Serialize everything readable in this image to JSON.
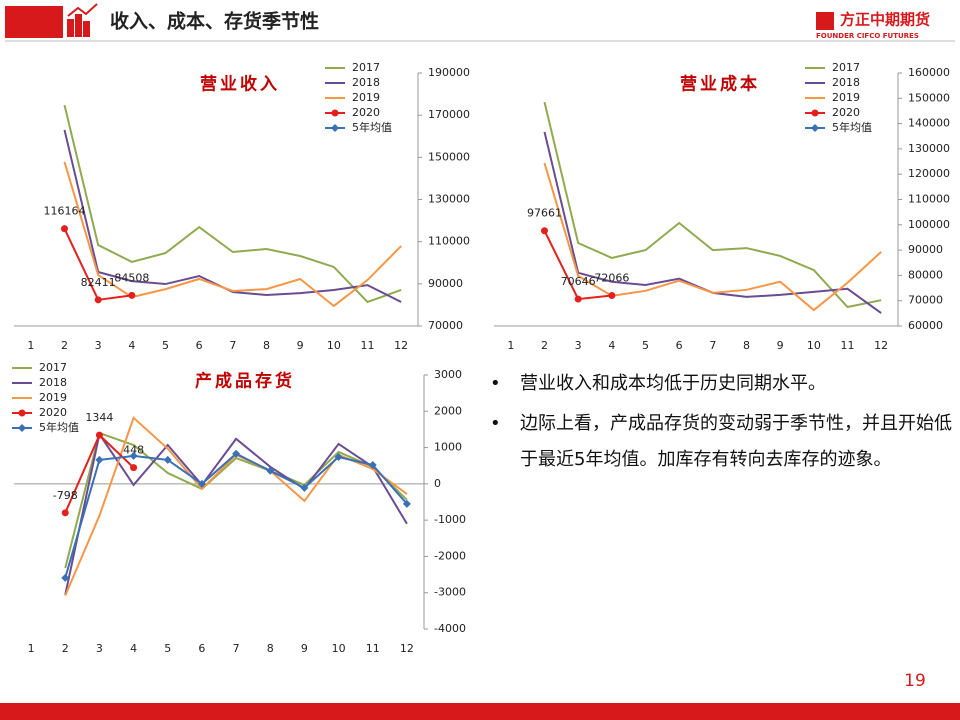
{
  "header": {
    "title": "收入、成本、存货季节性",
    "logo_cn": "方正中期期货",
    "logo_en": "FOUNDER CIFCO FUTURES"
  },
  "chart_data": [
    {
      "type": "line",
      "title": "营业收入",
      "legend": "upper right",
      "categories": [
        "1",
        "2",
        "3",
        "4",
        "5",
        "6",
        "7",
        "8",
        "9",
        "10",
        "11",
        "12"
      ],
      "ylim": [
        70000,
        190000
      ],
      "yticks": [
        70000,
        90000,
        110000,
        130000,
        150000,
        170000,
        190000
      ],
      "series": [
        {
          "name": "2017",
          "color": "#8faa4f",
          "values": [
            null,
            174800,
            108400,
            100400,
            104600,
            116900,
            105100,
            106500,
            103200,
            98000,
            81400,
            87100
          ]
        },
        {
          "name": "2018",
          "color": "#6a4c93",
          "values": [
            null,
            163000,
            95600,
            91300,
            89900,
            93700,
            86100,
            84700,
            85600,
            87100,
            89400,
            81400
          ]
        },
        {
          "name": "2019",
          "color": "#f79646",
          "values": [
            null,
            147800,
            94200,
            83700,
            87500,
            92300,
            86600,
            87500,
            92300,
            79500,
            91800,
            107900
          ]
        },
        {
          "name": "2020",
          "color": "#e3201b",
          "marker": "circle",
          "data_labels": true,
          "values": [
            null,
            116164,
            82411,
            84508,
            null,
            null,
            null,
            null,
            null,
            null,
            null,
            null
          ]
        },
        {
          "name": "5年均值",
          "color": "#3a70b5",
          "marker": "diamond",
          "values": [
            null,
            null,
            null,
            null,
            null,
            null,
            null,
            null,
            null,
            null,
            null,
            null
          ]
        }
      ]
    },
    {
      "type": "line",
      "title": "营业成本",
      "legend": "upper right",
      "categories": [
        "1",
        "2",
        "3",
        "4",
        "5",
        "6",
        "7",
        "8",
        "9",
        "10",
        "11",
        "12"
      ],
      "ylim": [
        60000,
        160000
      ],
      "yticks": [
        60000,
        70000,
        80000,
        90000,
        100000,
        110000,
        120000,
        130000,
        140000,
        150000,
        160000
      ],
      "series": [
        {
          "name": "2017",
          "color": "#8faa4f",
          "values": [
            null,
            148500,
            92800,
            86900,
            90000,
            100700,
            90000,
            90800,
            87700,
            82100,
            67500,
            70200
          ]
        },
        {
          "name": "2018",
          "color": "#6a4c93",
          "values": [
            null,
            136700,
            81000,
            77500,
            76200,
            78700,
            73100,
            71500,
            72300,
            73500,
            74700,
            65100
          ]
        },
        {
          "name": "2019",
          "color": "#f79646",
          "values": [
            null,
            124400,
            79800,
            71900,
            73900,
            77900,
            73100,
            74300,
            77500,
            66300,
            77100,
            89300
          ]
        },
        {
          "name": "2020",
          "color": "#e3201b",
          "marker": "circle",
          "data_labels": true,
          "values": [
            null,
            97661,
            70646,
            72066,
            null,
            null,
            null,
            null,
            null,
            null,
            null,
            null
          ]
        },
        {
          "name": "5年均值",
          "color": "#3a70b5",
          "marker": "diamond",
          "values": [
            null,
            null,
            null,
            null,
            null,
            null,
            null,
            null,
            null,
            null,
            null,
            null
          ]
        }
      ]
    },
    {
      "type": "line",
      "title": "产成品存货",
      "legend": "upper left",
      "categories": [
        "1",
        "2",
        "3",
        "4",
        "5",
        "6",
        "7",
        "8",
        "9",
        "10",
        "11",
        "12"
      ],
      "ylim": [
        -4000,
        3000
      ],
      "yticks": [
        -4000,
        -3000,
        -2000,
        -1000,
        0,
        1000,
        2000,
        3000
      ],
      "series": [
        {
          "name": "2017",
          "color": "#8faa4f",
          "values": [
            null,
            -2320,
            1400,
            1070,
            300,
            -140,
            710,
            360,
            -30,
            880,
            470,
            -440
          ]
        },
        {
          "name": "2018",
          "color": "#6a4c93",
          "values": [
            null,
            -3060,
            1370,
            -30,
            1070,
            -30,
            1240,
            470,
            -140,
            1100,
            470,
            -1100
          ]
        },
        {
          "name": "2019",
          "color": "#f79646",
          "values": [
            null,
            -3080,
            -880,
            1820,
            970,
            -140,
            800,
            360,
            -470,
            800,
            410,
            -280
          ]
        },
        {
          "name": "2020",
          "color": "#e3201b",
          "marker": "circle",
          "data_labels": true,
          "values": [
            null,
            -798,
            1344,
            448,
            null,
            null,
            null,
            null,
            null,
            null,
            null,
            null
          ]
        },
        {
          "name": "5年均值",
          "color": "#3a70b5",
          "marker": "diamond",
          "values": [
            null,
            -2590,
            660,
            770,
            660,
            0,
            830,
            360,
            -110,
            740,
            520,
            -550
          ]
        }
      ]
    }
  ],
  "bullets": [
    "营业收入和成本均低于历史同期水平。",
    "边际上看，产成品存货的变动弱于季节性，并且开始低于最近5年均值。加库存有转向去库存的迹象。"
  ],
  "page_number": "19"
}
